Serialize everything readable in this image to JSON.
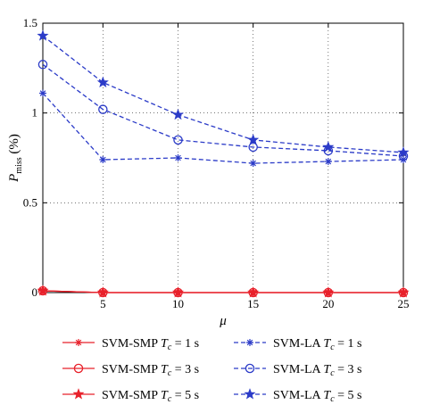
{
  "chart_data": {
    "type": "line",
    "title": "",
    "xlabel": "μ",
    "ylabel": {
      "main": "P",
      "sub": "miss",
      "suffix": "(%)"
    },
    "x": [
      1,
      5,
      10,
      15,
      20,
      25
    ],
    "xlim": [
      1,
      25
    ],
    "ylim": [
      0,
      1.5
    ],
    "xticks": [
      5,
      10,
      15,
      20,
      25
    ],
    "yticks": [
      0,
      0.5,
      1,
      1.5
    ],
    "xtick_labels": [
      "5",
      "10",
      "15",
      "20",
      "25"
    ],
    "ytick_labels": [
      "0",
      "0.5",
      "1",
      "1.5"
    ],
    "grid": true,
    "legend_position": "bottom",
    "series": [
      {
        "name": "SVM-SMP T_c = 1 s",
        "label": {
          "pre": "SVM-SMP ",
          "var": "T",
          "sub": "c",
          "post": " = 1 s"
        },
        "color": "#e8202a",
        "dash": "solid",
        "marker": "asterisk",
        "values": [
          0.01,
          0,
          0,
          0,
          0,
          0
        ]
      },
      {
        "name": "SVM-SMP T_c = 3 s",
        "label": {
          "pre": "SVM-SMP ",
          "var": "T",
          "sub": "c",
          "post": " = 3 s"
        },
        "color": "#e8202a",
        "dash": "solid",
        "marker": "circle",
        "values": [
          0.01,
          0,
          0,
          0,
          0,
          0
        ]
      },
      {
        "name": "SVM-SMP T_c = 5 s",
        "label": {
          "pre": "SVM-SMP ",
          "var": "T",
          "sub": "c",
          "post": " = 5 s"
        },
        "color": "#e8202a",
        "dash": "solid",
        "marker": "star",
        "values": [
          0.01,
          0,
          0,
          0,
          0,
          0
        ]
      },
      {
        "name": "SVM-LA T_c = 1 s",
        "label": {
          "pre": "SVM-LA ",
          "var": "T",
          "sub": "c",
          "post": " = 1 s"
        },
        "color": "#2b3bc8",
        "dash": "dashed",
        "marker": "asterisk",
        "values": [
          1.11,
          0.74,
          0.75,
          0.72,
          0.73,
          0.74
        ]
      },
      {
        "name": "SVM-LA T_c = 3 s",
        "label": {
          "pre": "SVM-LA ",
          "var": "T",
          "sub": "c",
          "post": " = 3 s"
        },
        "color": "#2b3bc8",
        "dash": "dashed",
        "marker": "circle",
        "values": [
          1.27,
          1.02,
          0.85,
          0.81,
          0.79,
          0.76
        ]
      },
      {
        "name": "SVM-LA T_c = 5 s",
        "label": {
          "pre": "SVM-LA ",
          "var": "T",
          "sub": "c",
          "post": " = 5 s"
        },
        "color": "#2b3bc8",
        "dash": "dashed",
        "marker": "star",
        "values": [
          1.43,
          1.17,
          0.99,
          0.85,
          0.81,
          0.78
        ]
      }
    ]
  }
}
